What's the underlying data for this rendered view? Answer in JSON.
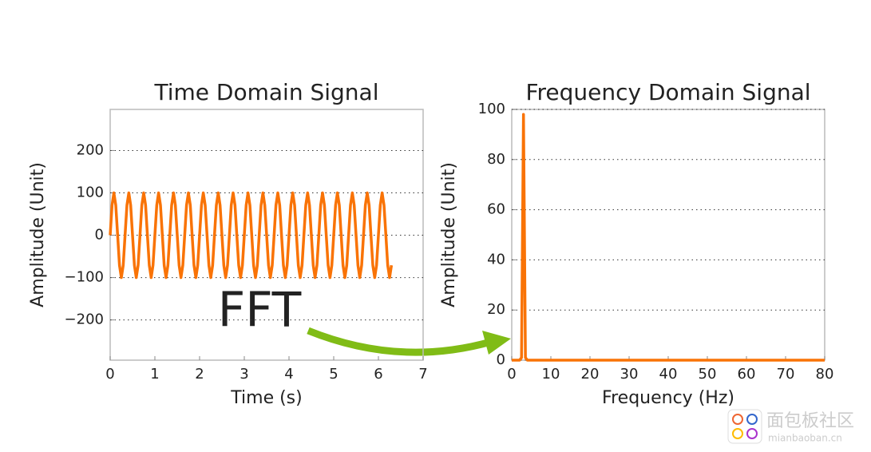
{
  "chart_data": [
    {
      "type": "line",
      "title": "Time Domain Signal",
      "xlabel": "Time (s)",
      "ylabel": "Amplitude (Unit)",
      "xlim": [
        0,
        7
      ],
      "xticks": [
        0,
        1,
        2,
        3,
        4,
        5,
        6,
        7
      ],
      "ylim": [
        -295,
        297
      ],
      "yticks": [
        {
          "value": -200,
          "label": "−200"
        },
        {
          "value": -100,
          "label": "−100"
        },
        0,
        100,
        200
      ],
      "grid": true,
      "x": [
        0,
        0.042,
        0.083,
        0.125,
        0.167,
        0.208,
        0.25,
        0.292,
        0.333,
        0.375,
        0.417,
        0.458,
        0.5,
        0.542,
        0.583,
        0.625,
        0.667,
        0.708,
        0.75,
        0.792,
        0.833,
        0.875,
        0.917,
        0.958,
        1,
        1.042,
        1.083,
        1.125,
        1.167,
        1.208,
        1.25,
        1.292,
        1.333,
        1.375,
        1.417,
        1.458,
        1.5,
        1.542,
        1.583,
        1.625,
        1.667,
        1.708,
        1.75,
        1.792,
        1.833,
        1.875,
        1.917,
        1.958,
        2,
        2.042,
        2.083,
        2.125,
        2.167,
        2.208,
        2.25,
        2.292,
        2.333,
        2.375,
        2.417,
        2.458,
        2.5,
        2.542,
        2.583,
        2.625,
        2.667,
        2.708,
        2.75,
        2.792,
        2.833,
        2.875,
        2.917,
        2.958,
        3,
        3.042,
        3.083,
        3.125,
        3.167,
        3.208,
        3.25,
        3.292,
        3.333,
        3.375,
        3.417,
        3.458,
        3.5,
        3.542,
        3.583,
        3.625,
        3.667,
        3.708,
        3.75,
        3.792,
        3.833,
        3.875,
        3.917,
        3.958,
        4,
        4.042,
        4.083,
        4.125,
        4.167,
        4.208,
        4.25,
        4.292,
        4.333,
        4.375,
        4.417,
        4.458,
        4.5,
        4.542,
        4.583,
        4.625,
        4.667,
        4.708,
        4.75,
        4.792,
        4.833,
        4.875,
        4.917,
        4.958,
        5,
        5.042,
        5.083,
        5.125,
        5.167,
        5.208,
        5.25,
        5.292,
        5.333,
        5.375,
        5.417,
        5.458,
        5.5,
        5.542,
        5.583,
        5.625,
        5.667,
        5.708,
        5.75,
        5.792,
        5.833,
        5.875,
        5.917,
        5.958,
        6,
        6.042,
        6.083,
        6.125,
        6.167,
        6.208,
        6.25,
        6.292
      ],
      "series": [
        {
          "color": "#f97306",
          "values": [
            0,
            71,
            100,
            71,
            0,
            -71,
            -100,
            -71,
            0,
            71,
            100,
            71,
            0,
            -71,
            -100,
            -71,
            0,
            71,
            100,
            71,
            0,
            -71,
            -100,
            -71,
            0,
            71,
            100,
            71,
            0,
            -71,
            -100,
            -71,
            0,
            71,
            100,
            71,
            0,
            -71,
            -100,
            -71,
            0,
            71,
            100,
            71,
            0,
            -71,
            -100,
            -71,
            0,
            71,
            100,
            71,
            0,
            -71,
            -100,
            -71,
            0,
            71,
            100,
            71,
            0,
            -71,
            -100,
            -71,
            0,
            71,
            100,
            71,
            0,
            -71,
            -100,
            -71,
            0,
            71,
            100,
            71,
            0,
            -71,
            -100,
            -71,
            0,
            71,
            100,
            71,
            0,
            -71,
            -100,
            -71,
            0,
            71,
            100,
            71,
            0,
            -71,
            -100,
            -71,
            0,
            71,
            100,
            71,
            0,
            -71,
            -100,
            -71,
            0,
            71,
            100,
            71,
            0,
            -71,
            -100,
            -71,
            0,
            71,
            100,
            71,
            0,
            -71,
            -100,
            -71,
            0,
            71,
            100,
            71,
            0,
            -71,
            -100,
            -71,
            0,
            71,
            100,
            71,
            0,
            -71,
            -100,
            -71,
            0,
            71,
            100,
            71,
            0,
            -71,
            -100,
            -71,
            0,
            71,
            100,
            71,
            0,
            -71,
            -100,
            -71
          ]
        }
      ]
    },
    {
      "type": "line",
      "title": "Frequency Domain Signal",
      "xlabel": "Frequency (Hz)",
      "ylabel": "Amplitude (Unit)",
      "xlim": [
        0,
        80
      ],
      "xticks": [
        0,
        10,
        20,
        30,
        40,
        50,
        60,
        70,
        80
      ],
      "ylim": [
        0,
        100
      ],
      "yticks": [
        0,
        20,
        40,
        60,
        80,
        100
      ],
      "grid": true,
      "x": [
        0,
        2,
        2.5,
        3,
        3.5,
        4,
        80
      ],
      "series": [
        {
          "color": "#f97306",
          "values": [
            0,
            0,
            1,
            98,
            1,
            0,
            0
          ]
        }
      ]
    }
  ],
  "annotation": "FFT",
  "watermark": {
    "name": "面包板社区",
    "url": "mianbaoban.cn"
  }
}
